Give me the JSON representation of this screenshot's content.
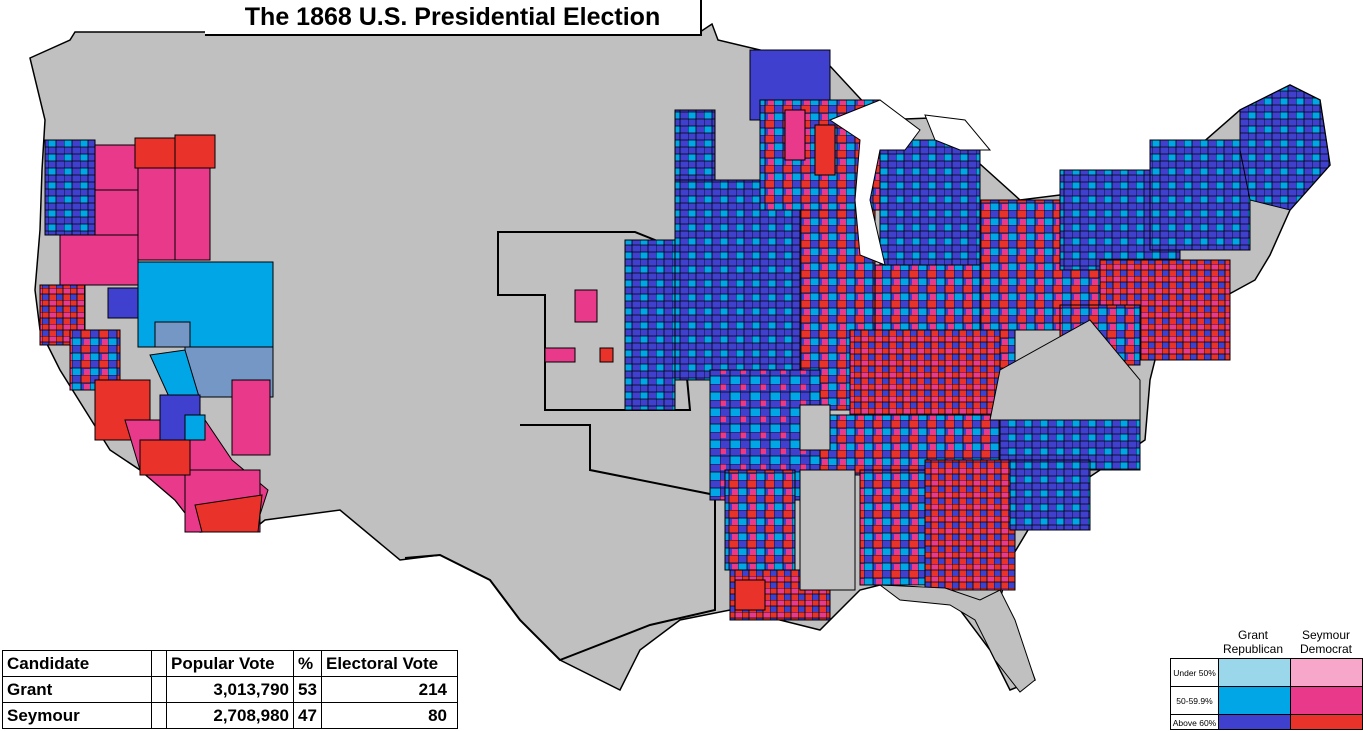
{
  "title": "The 1868 U.S. Presidential Election",
  "results_table": {
    "headers": [
      "Candidate",
      "",
      "Popular Vote",
      "%",
      "Electoral Vote"
    ],
    "rows": [
      {
        "candidate": "Grant",
        "popular_vote": "3,013,790",
        "percent": "53",
        "electoral_vote": "214"
      },
      {
        "candidate": "Seymour",
        "popular_vote": "2,708,980",
        "percent": "47",
        "electoral_vote": "80"
      }
    ]
  },
  "legend": {
    "grant_line1": "Grant",
    "grant_line2": "Republican",
    "seymour_line1": "Seymour",
    "seymour_line2": "Democrat",
    "levels": [
      "Under 50%",
      "50-59.9%",
      "Above 60%"
    ]
  },
  "colors": {
    "grant": [
      "#9ad7ea",
      "#00a6e6",
      "#4040cf"
    ],
    "seymour": [
      "#f7a7c9",
      "#e8398a",
      "#e9322a"
    ],
    "no_data": "#c0c0c0",
    "nevada_blue": "#7497c6"
  }
}
